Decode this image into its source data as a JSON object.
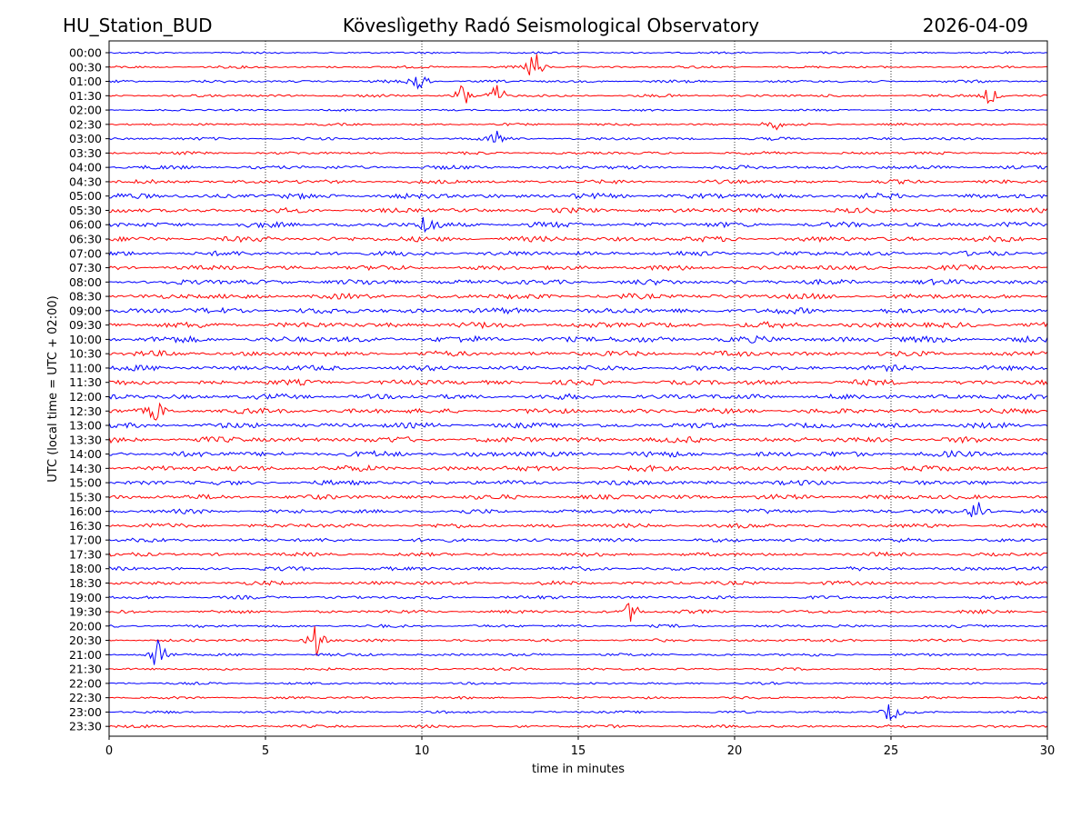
{
  "header": {
    "station": "HU_Station_BUD",
    "observatory": "Köveslìgethy Radó Seismological Observatory",
    "date": "2026-04-09"
  },
  "chart_data": {
    "type": "line",
    "title": "Köveslìgethy Radó Seismological Observatory",
    "xlabel": "time in minutes",
    "ylabel": "UTC (local time = UTC + 02:00)",
    "xlim": [
      0,
      30
    ],
    "xticks": [
      0,
      5,
      10,
      15,
      20,
      25,
      30
    ],
    "grid": "vertical dotted lines at x ticks",
    "rows": [
      "00:00",
      "00:30",
      "01:00",
      "01:30",
      "02:00",
      "02:30",
      "03:00",
      "03:30",
      "04:00",
      "04:30",
      "05:00",
      "05:30",
      "06:00",
      "06:30",
      "07:00",
      "07:30",
      "08:00",
      "08:30",
      "09:00",
      "09:30",
      "10:00",
      "10:30",
      "11:00",
      "11:30",
      "12:00",
      "12:30",
      "13:00",
      "13:30",
      "14:00",
      "14:30",
      "15:00",
      "15:30",
      "16:00",
      "16:30",
      "17:00",
      "17:30",
      "18:00",
      "18:30",
      "19:00",
      "19:30",
      "20:00",
      "20:30",
      "21:00",
      "21:30",
      "22:00",
      "22:30",
      "23:00",
      "23:30"
    ],
    "colors": [
      "#0000ff",
      "#ff0000"
    ],
    "base_amplitude": [
      0.2,
      0.25,
      0.28,
      0.28,
      0.22,
      0.25,
      0.3,
      0.3,
      0.4,
      0.4,
      0.55,
      0.5,
      0.55,
      0.55,
      0.5,
      0.5,
      0.55,
      0.55,
      0.6,
      0.6,
      0.65,
      0.55,
      0.55,
      0.55,
      0.55,
      0.55,
      0.55,
      0.6,
      0.6,
      0.6,
      0.5,
      0.5,
      0.45,
      0.45,
      0.4,
      0.4,
      0.4,
      0.4,
      0.35,
      0.35,
      0.3,
      0.3,
      0.3,
      0.25,
      0.25,
      0.25,
      0.25,
      0.3
    ],
    "events": [
      {
        "row": "00:30",
        "minute": 13.6,
        "amplitude": 2.5
      },
      {
        "row": "01:00",
        "minute": 9.9,
        "amplitude": 2.2
      },
      {
        "row": "01:30",
        "minute": 11.3,
        "amplitude": 2.0
      },
      {
        "row": "01:30",
        "minute": 12.4,
        "amplitude": 1.8
      },
      {
        "row": "01:30",
        "minute": 28.2,
        "amplitude": 1.5
      },
      {
        "row": "02:30",
        "minute": 21.2,
        "amplitude": 1.2
      },
      {
        "row": "03:00",
        "minute": 12.4,
        "amplitude": 1.3
      },
      {
        "row": "06:00",
        "minute": 10.2,
        "amplitude": 2.0
      },
      {
        "row": "12:30",
        "minute": 1.5,
        "amplitude": 1.5
      },
      {
        "row": "16:00",
        "minute": 27.8,
        "amplitude": 2.2
      },
      {
        "row": "19:30",
        "minute": 16.7,
        "amplitude": 1.8
      },
      {
        "row": "20:30",
        "minute": 6.6,
        "amplitude": 3.0
      },
      {
        "row": "21:00",
        "minute": 1.6,
        "amplitude": 3.5
      },
      {
        "row": "23:00",
        "minute": 25.0,
        "amplitude": 1.6
      }
    ]
  }
}
